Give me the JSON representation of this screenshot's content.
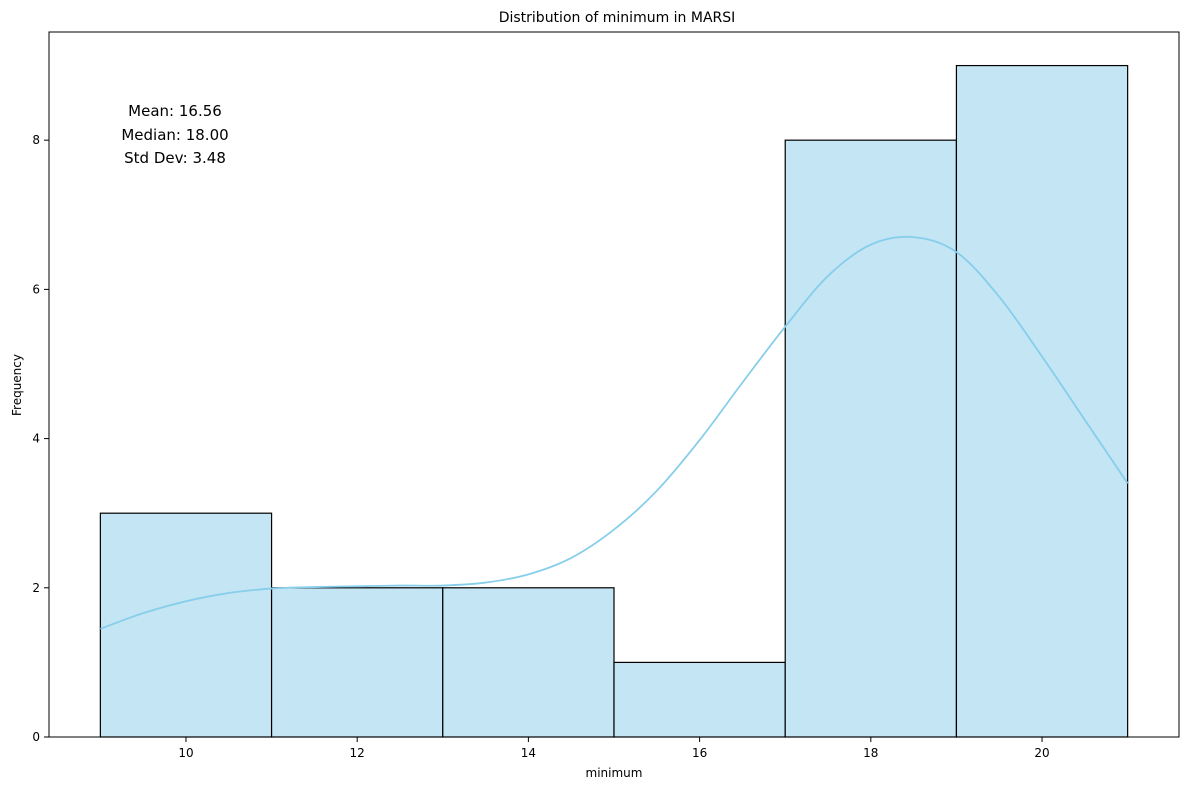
{
  "chart_data": {
    "type": "bar",
    "title": "Distribution of minimum in MARSI",
    "xlabel": "minimum",
    "ylabel": "Frequency",
    "bin_edges": [
      9,
      11,
      13,
      15,
      17,
      19,
      21
    ],
    "values": [
      3,
      2,
      2,
      1,
      8,
      9
    ],
    "xlim": [
      8.4,
      21.6
    ],
    "ylim": [
      0,
      9.45
    ],
    "xticks": [
      10,
      12,
      14,
      16,
      18,
      20
    ],
    "yticks": [
      0,
      2,
      4,
      6,
      8
    ],
    "bar_color": "#c3e5f4",
    "edge_color": "#000000",
    "kde_color": "#87ceeb",
    "kde": {
      "x": [
        9,
        9.5,
        10,
        10.5,
        11,
        11.5,
        12,
        12.5,
        13,
        13.5,
        14,
        14.5,
        15,
        15.5,
        16,
        16.5,
        17,
        17.5,
        18,
        18.5,
        19,
        19.5,
        20,
        20.5,
        21
      ],
      "y": [
        1.45,
        1.66,
        1.82,
        1.93,
        1.99,
        2.01,
        2.02,
        2.03,
        2.03,
        2.07,
        2.18,
        2.4,
        2.78,
        3.3,
        3.98,
        4.75,
        5.5,
        6.18,
        6.6,
        6.7,
        6.5,
        5.9,
        5.1,
        4.25,
        3.4
      ]
    },
    "grid": false,
    "annotation": {
      "lines": [
        "Mean: 16.56",
        "Median: 18.00",
        "Std Dev: 3.48"
      ]
    }
  }
}
